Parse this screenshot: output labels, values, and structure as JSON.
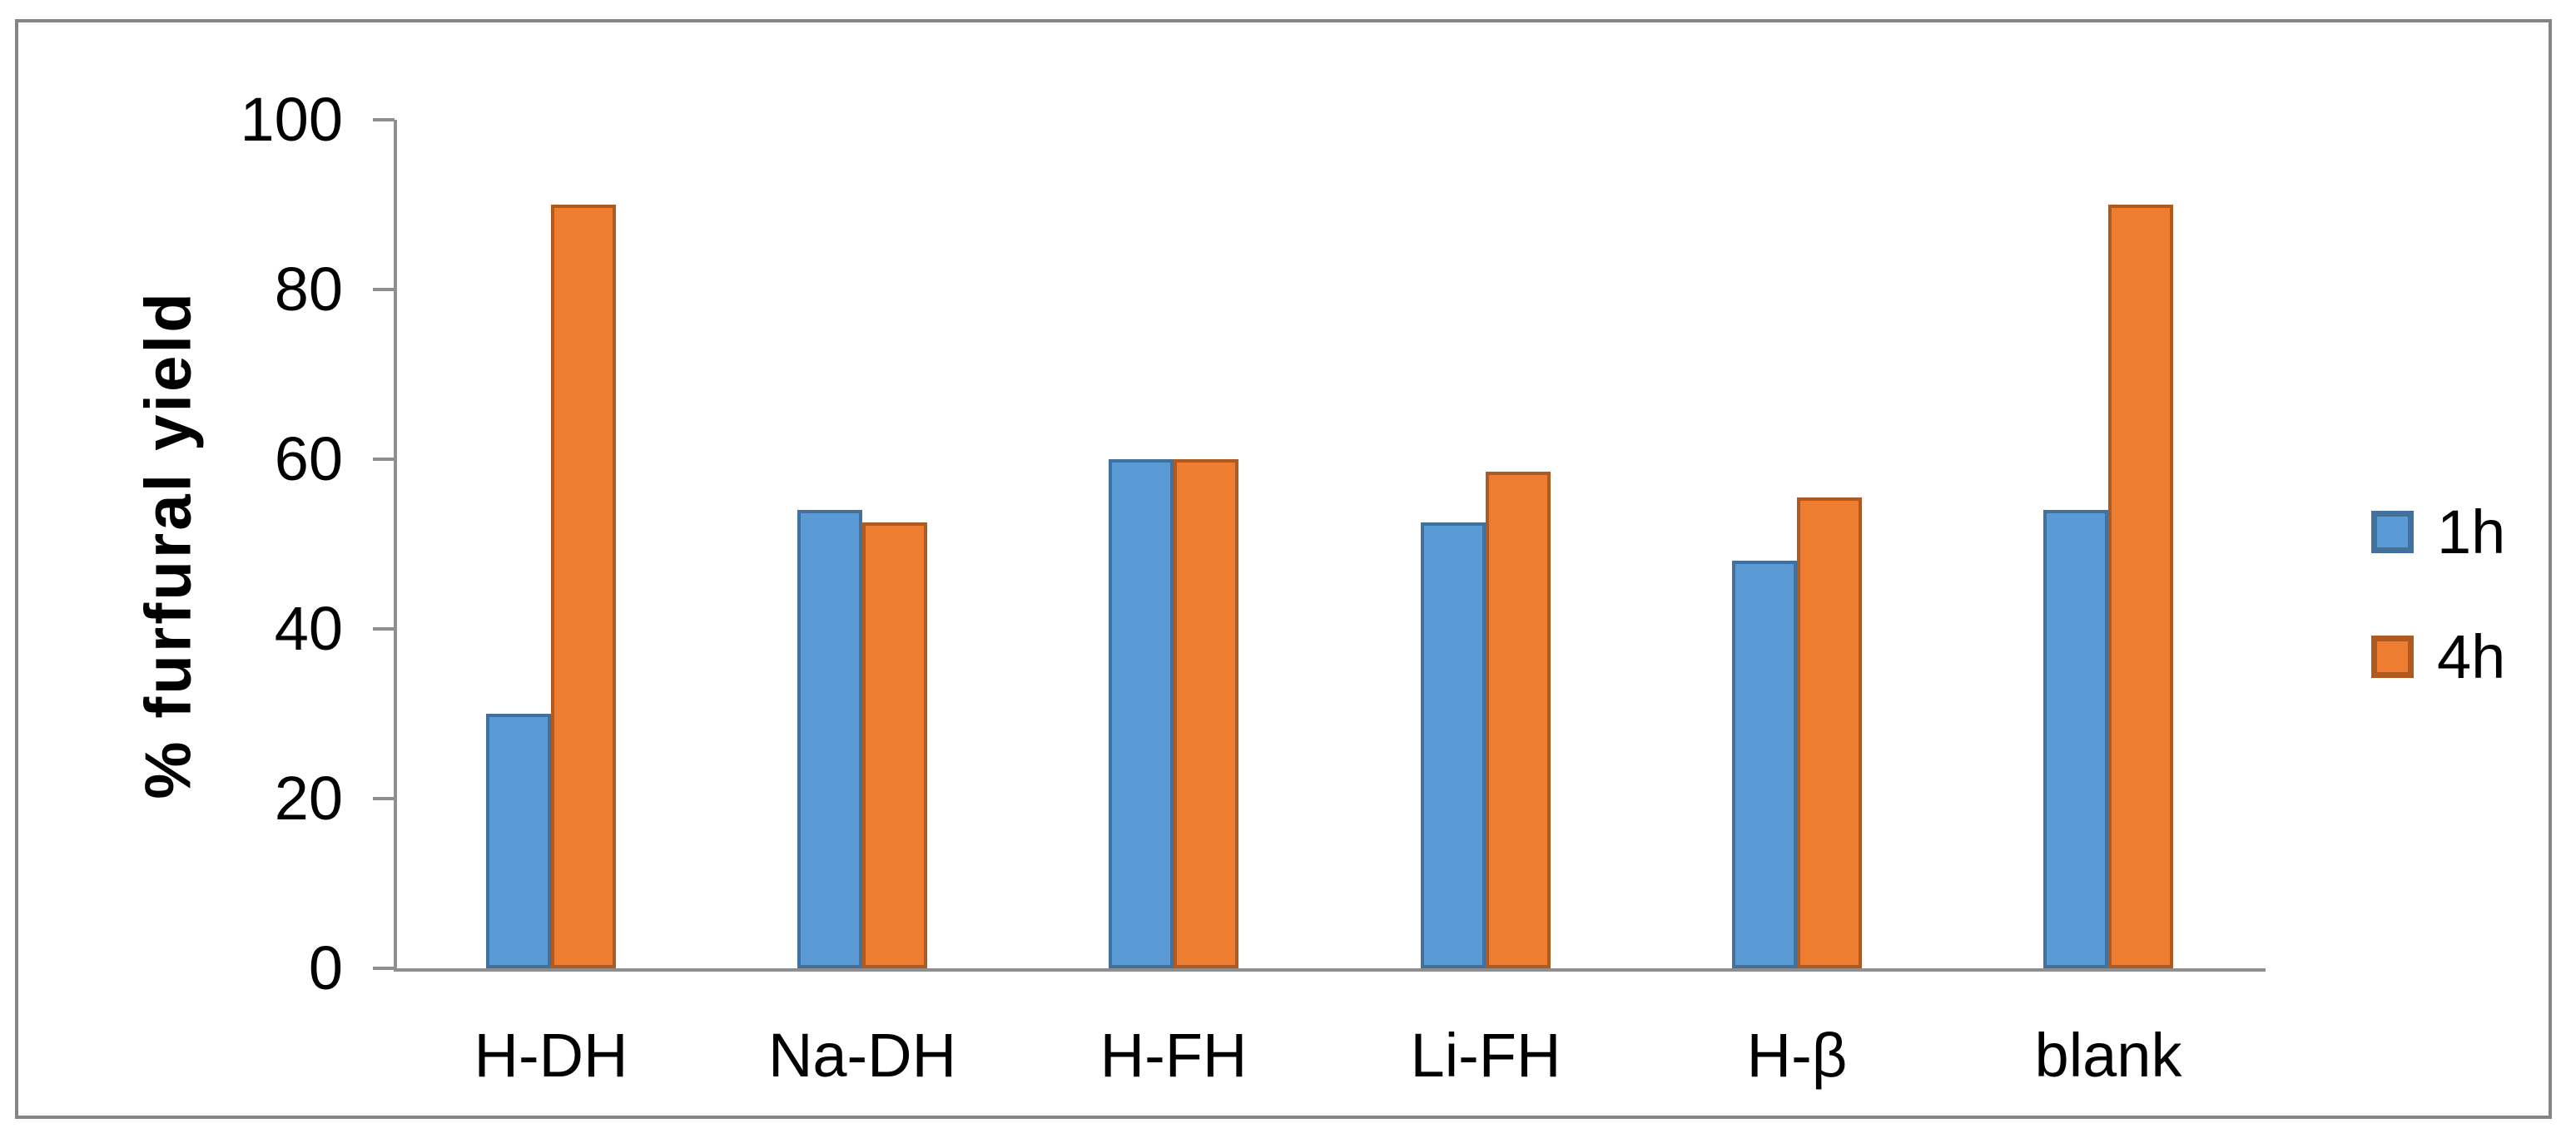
{
  "chart_data": {
    "type": "bar",
    "title": "",
    "xlabel": "",
    "ylabel": "% furfural yield",
    "categories": [
      "H-DH",
      "Na-DH",
      "H-FH",
      "Li-FH",
      "H-β",
      "blank"
    ],
    "series": [
      {
        "name": "1h",
        "color": "#5B9BD5",
        "border_color": "#41719C",
        "values": [
          30,
          54,
          60,
          52.5,
          48,
          54
        ]
      },
      {
        "name": "4h",
        "color": "#ED7D31",
        "border_color": "#AE5A21",
        "values": [
          90,
          52.5,
          60,
          58.5,
          55.5,
          90
        ]
      }
    ],
    "ylim": [
      0,
      100
    ],
    "yticks": [
      0,
      20,
      40,
      60,
      80,
      100
    ],
    "ytick_labels": [
      "0",
      "20",
      "40",
      "60",
      "80",
      "100"
    ],
    "grid": false,
    "legend_position": "right",
    "legend_labels": [
      "1h",
      "4h"
    ]
  },
  "colors": {
    "axis": "#8F8F8F",
    "frame_border": "#858585",
    "text": "#000000",
    "background": "#FFFFFF"
  }
}
